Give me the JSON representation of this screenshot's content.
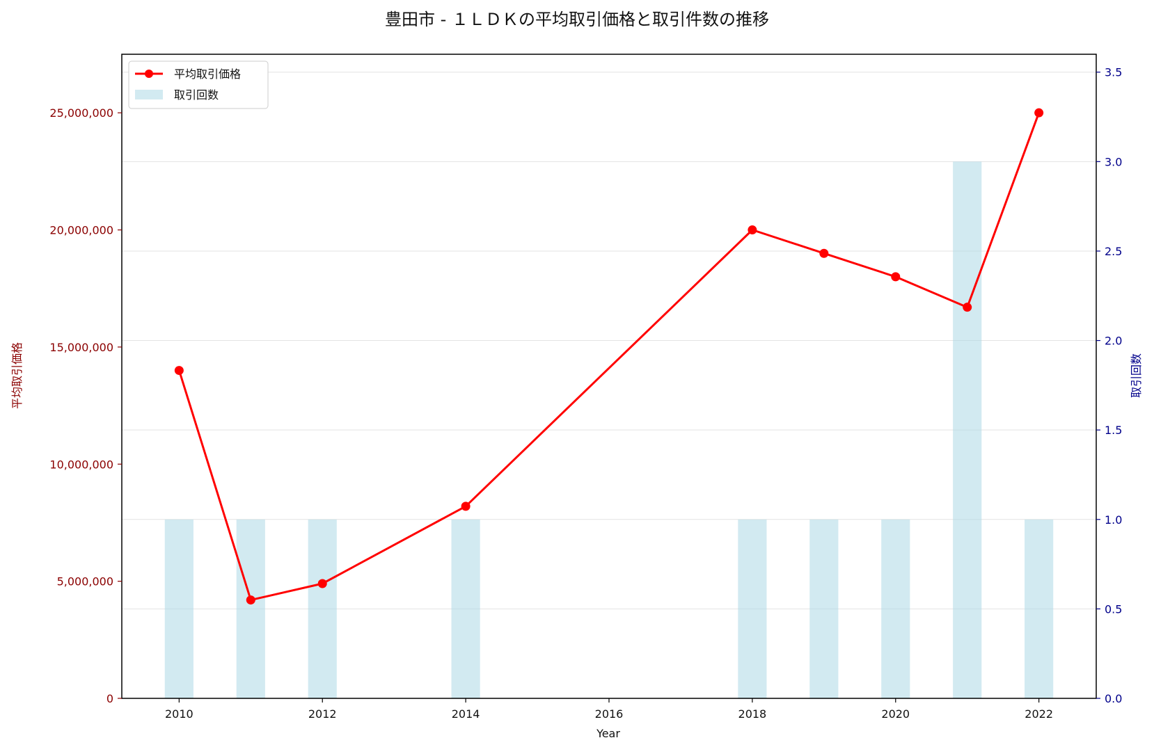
{
  "chart_data": {
    "type": "bar+line",
    "title": "豊田市 - １ＬＤＫの平均取引価格と取引件数の推移",
    "xlabel": "Year",
    "ylabel_left": "平均取引価格",
    "ylabel_right": "取引回数",
    "xlim": [
      2009.2,
      2022.8
    ],
    "ylim_left": [
      0,
      27500000
    ],
    "ylim_right": [
      0,
      3.6
    ],
    "x_ticks": [
      2010,
      2012,
      2014,
      2016,
      2018,
      2020,
      2022
    ],
    "y_left_ticks": [
      0,
      5000000,
      10000000,
      15000000,
      20000000,
      25000000
    ],
    "y_left_tick_labels": [
      "0",
      "5,000,000",
      "10,000,000",
      "15,000,000",
      "20,000,000",
      "25,000,000"
    ],
    "y_right_ticks": [
      0.0,
      0.5,
      1.0,
      1.5,
      2.0,
      2.5,
      3.0,
      3.5
    ],
    "y_right_tick_labels": [
      "0.0",
      "0.5",
      "1.0",
      "1.5",
      "2.0",
      "2.5",
      "3.0",
      "3.5"
    ],
    "grid": "horizontal (right axis)",
    "legend_position": "top-left",
    "series": [
      {
        "name": "平均取引価格",
        "type": "line",
        "axis": "left",
        "color": "#ff0000",
        "x": [
          2010,
          2011,
          2012,
          2014,
          2018,
          2019,
          2020,
          2021,
          2022
        ],
        "values": [
          14000000,
          4200000,
          4900000,
          8200000,
          20000000,
          19000000,
          18000000,
          16700000,
          25000000
        ]
      },
      {
        "name": "取引回数",
        "type": "bar",
        "axis": "right",
        "color": "#add8e6",
        "x": [
          2010,
          2011,
          2012,
          2014,
          2018,
          2019,
          2020,
          2021,
          2022
        ],
        "values": [
          1,
          1,
          1,
          1,
          1,
          1,
          1,
          3,
          1
        ]
      }
    ]
  }
}
